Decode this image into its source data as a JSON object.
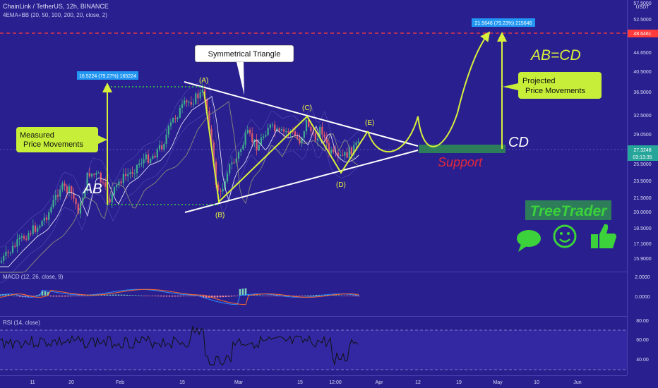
{
  "header": {
    "symbol_line": "ChainLink / TetherUS, 12h, BINANCE",
    "indicator_line": "4EMA+BB (20, 50, 100, 200, 20, close, 2)"
  },
  "price_axis": {
    "currency": "USDT",
    "ticks": [
      "57.5000",
      "52.5000",
      "44.6500",
      "40.5000",
      "36.5000",
      "32.5000",
      "29.0500",
      "25.5000",
      "23.5000",
      "21.5000",
      "20.0000",
      "18.5000",
      "17.1000",
      "15.9000"
    ],
    "current_price": "27.3248",
    "countdown": "03:13:35",
    "target_price": "48.6461"
  },
  "macd_panel": {
    "label": "MACD (12, 26, close, 9)",
    "ticks": [
      "2.0000",
      "0.0000"
    ]
  },
  "rsi_panel": {
    "label": "RSI (14, close)",
    "ticks": [
      "80.00",
      "60.00",
      "40.00"
    ]
  },
  "time_axis": [
    "11",
    "20",
    "Feb",
    "15",
    "Mar",
    "15",
    "12:00",
    "Apr",
    "12",
    "19",
    "May",
    "10",
    "Jun"
  ],
  "annotations": {
    "measured_label": "16.5224 (79.27%) 165224",
    "projected_label": "21.5646 (79.23%) 215646",
    "triangle_title": "Symmetrical Triangle",
    "measured_box": [
      "Measured",
      "Price Movements"
    ],
    "projected_box": [
      "Projected",
      "Price Movements"
    ],
    "ab": "AB",
    "cd": "CD",
    "abcd": "AB=CD",
    "support": "Support",
    "points": [
      "(A)",
      "(B)",
      "(C)",
      "(D)",
      "(E)"
    ],
    "brand": "TreeTrader"
  },
  "colors": {
    "background": "#2a1f8f",
    "up_candle": "#3fae8f",
    "down_candle": "#e35a6a",
    "wave_line": "#d8f03a",
    "triangle": "#ffffff",
    "support_zone": "#2e7d5a",
    "support_text": "#e0283a",
    "target_line": "#ff3b3b",
    "macd_line": "#2b8dff",
    "signal_line": "#ff6a2b",
    "rsi_line": "#111111",
    "brand_green": "#3bd23b"
  },
  "chart_data": [
    {
      "type": "candlestick",
      "symbol": "ChainLink / TetherUS",
      "interval": "12h",
      "yscale": "log",
      "ylim": [
        15.5,
        57.5
      ],
      "key_levels": {
        "current_price": 27.3248,
        "projected_target": 48.6461,
        "measured_move": 16.5224,
        "projected_move": 21.5646
      },
      "waves": [
        {
          "point": "(A)",
          "price": 37.0
        },
        {
          "point": "(B)",
          "price": 20.8
        },
        {
          "point": "(C)",
          "price": 32.9
        },
        {
          "point": "(D)",
          "price": 25.0
        },
        {
          "point": "(E)",
          "price": 29.2
        }
      ]
    },
    {
      "type": "bar",
      "name": "MACD (12, 26, close, 9)",
      "ylim": [
        -1.5,
        2.5
      ]
    },
    {
      "type": "line",
      "name": "RSI (14, close)",
      "ylim": [
        30,
        85
      ],
      "bands": [
        70,
        30
      ]
    }
  ]
}
